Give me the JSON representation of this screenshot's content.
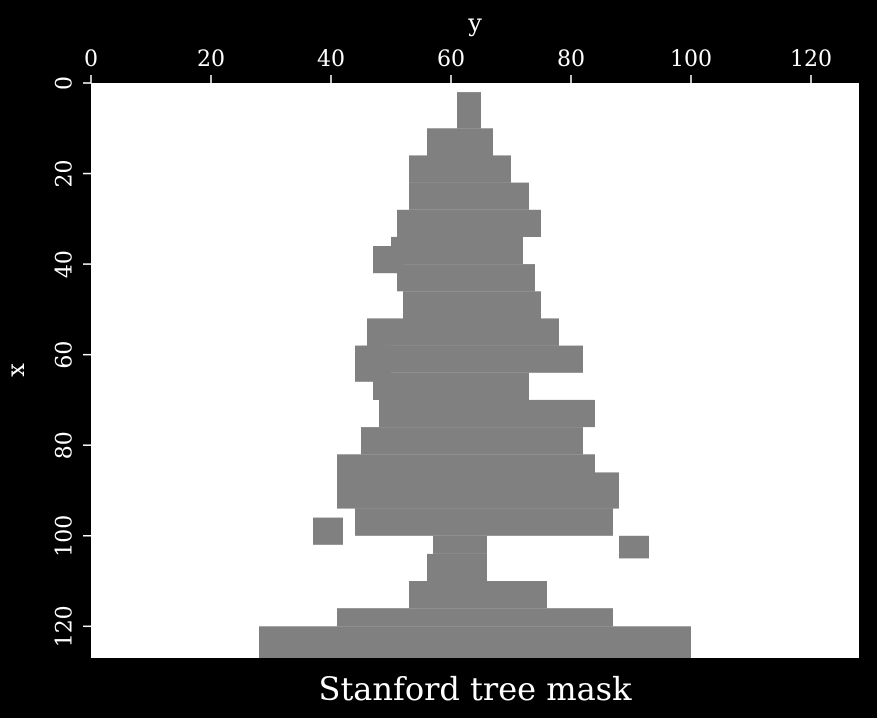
{
  "chart_data": {
    "type": "heatmap",
    "title": "Stanford tree mask",
    "xlabel": "x",
    "ylabel": "y",
    "x_axis_position": "left, increasing downward",
    "y_axis_position": "top, increasing rightward",
    "xlim": [
      0,
      127
    ],
    "ylim": [
      0,
      128
    ],
    "x_ticks": [
      0,
      20,
      40,
      60,
      80,
      100,
      120
    ],
    "y_ticks": [
      0,
      20,
      40,
      60,
      80,
      100,
      120
    ],
    "grid": false,
    "legend": "none",
    "colors": {
      "background": "#000000",
      "masked": "#ffffff",
      "tree": "#808080"
    },
    "tree_value_note": "gray cells = tree (mask 0), white = 1",
    "tree_rows": [
      {
        "x": [
          2,
          10
        ],
        "y": [
          61,
          65
        ]
      },
      {
        "x": [
          10,
          16
        ],
        "y": [
          56,
          67
        ]
      },
      {
        "x": [
          16,
          22
        ],
        "y": [
          53,
          70
        ]
      },
      {
        "x": [
          22,
          28
        ],
        "y": [
          53,
          73
        ]
      },
      {
        "x": [
          28,
          34
        ],
        "y": [
          51,
          75
        ]
      },
      {
        "x": [
          34,
          40
        ],
        "y": [
          50,
          72
        ]
      },
      {
        "x": [
          40,
          46
        ],
        "y": [
          51,
          74
        ]
      },
      {
        "x": [
          46,
          52
        ],
        "y": [
          52,
          75
        ]
      },
      {
        "x": [
          52,
          58
        ],
        "y": [
          46,
          78
        ]
      },
      {
        "x": [
          58,
          64
        ],
        "y": [
          45,
          82
        ]
      },
      {
        "x": [
          64,
          70
        ],
        "y": [
          47,
          73
        ]
      },
      {
        "x": [
          70,
          76
        ],
        "y": [
          48,
          84
        ]
      },
      {
        "x": [
          76,
          82
        ],
        "y": [
          45,
          82
        ]
      },
      {
        "x": [
          82,
          88
        ],
        "y": [
          41,
          84
        ]
      },
      {
        "x": [
          88,
          94
        ],
        "y": [
          41,
          88
        ]
      },
      {
        "x": [
          94,
          100
        ],
        "y": [
          44,
          87
        ]
      },
      {
        "x": [
          100,
          104
        ],
        "y": [
          57,
          66
        ]
      },
      {
        "x": [
          104,
          110
        ],
        "y": [
          56,
          66
        ]
      },
      {
        "x": [
          110,
          116
        ],
        "y": [
          53,
          76
        ]
      },
      {
        "x": [
          116,
          120
        ],
        "y": [
          41,
          87
        ]
      },
      {
        "x": [
          120,
          127
        ],
        "y": [
          28,
          100
        ]
      }
    ],
    "tree_blobs": [
      {
        "x": [
          96,
          102
        ],
        "y": [
          37,
          42
        ]
      },
      {
        "x": [
          100,
          105
        ],
        "y": [
          88,
          93
        ]
      },
      {
        "x": [
          36,
          42
        ],
        "y": [
          47,
          52
        ]
      },
      {
        "x": [
          58,
          66
        ],
        "y": [
          44,
          50
        ]
      },
      {
        "x": [
          86,
          92
        ],
        "y": [
          83,
          88
        ]
      }
    ]
  }
}
